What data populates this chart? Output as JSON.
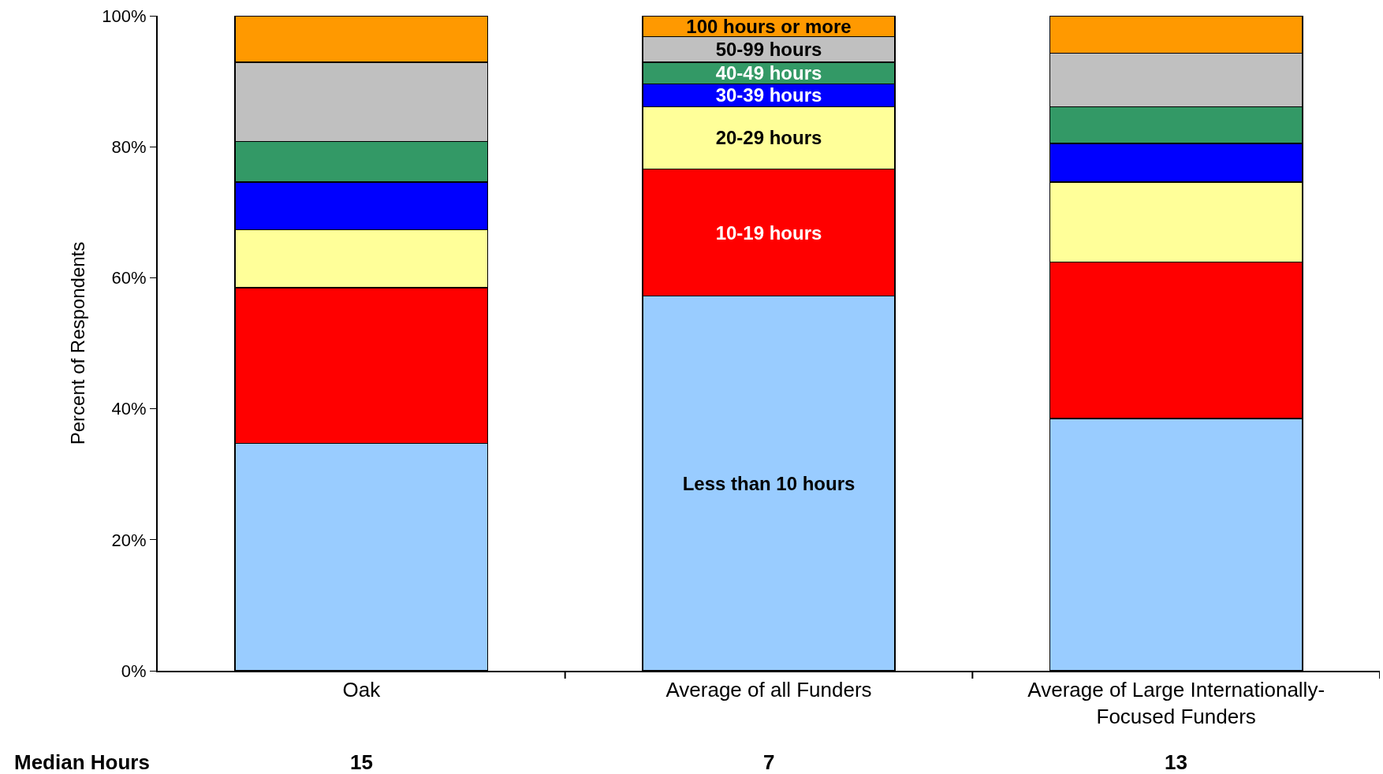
{
  "chart_data": {
    "type": "bar",
    "stacked": true,
    "ylabel": "Percent of Respondents",
    "categories": [
      "Oak",
      "Average of all Funders",
      "Average of Large Internationally-Focused Funders"
    ],
    "series": [
      {
        "name": "Less than 10 hours",
        "color": "#99ccff",
        "values": [
          34.7,
          57.2,
          38.5
        ]
      },
      {
        "name": "10-19 hours",
        "color": "#ff0000",
        "values": [
          23.8,
          19.4,
          23.9
        ]
      },
      {
        "name": "20-29 hours",
        "color": "#ffff99",
        "values": [
          8.8,
          9.5,
          12.2
        ]
      },
      {
        "name": "30-39 hours",
        "color": "#0000ff",
        "values": [
          7.3,
          3.5,
          5.9
        ]
      },
      {
        "name": "40-49 hours",
        "color": "#339966",
        "values": [
          6.2,
          3.3,
          5.6
        ]
      },
      {
        "name": "50-99 hours",
        "color": "#c0c0c0",
        "values": [
          12.1,
          3.9,
          8.2
        ]
      },
      {
        "name": "100 hours or more",
        "color": "#ff9900",
        "values": [
          7.1,
          3.2,
          5.7
        ]
      }
    ],
    "ylim": [
      0,
      100
    ],
    "yticks": [
      {
        "value": 0,
        "label": "0%"
      },
      {
        "value": 20,
        "label": "20%"
      },
      {
        "value": 40,
        "label": "40%"
      },
      {
        "value": 60,
        "label": "60%"
      },
      {
        "value": 80,
        "label": "80%"
      },
      {
        "value": 100,
        "label": "100%"
      }
    ],
    "annotations": [
      "Median Hours",
      "15",
      "7",
      "13"
    ]
  }
}
